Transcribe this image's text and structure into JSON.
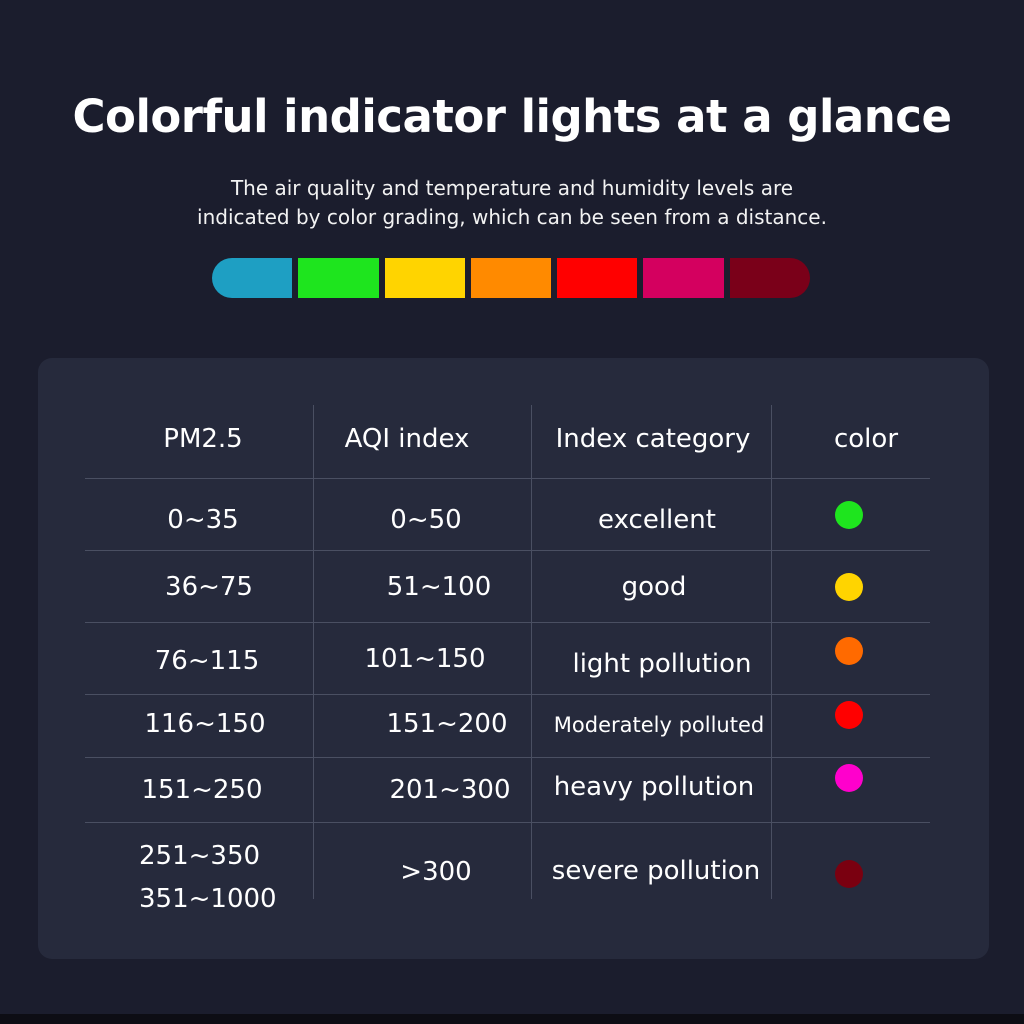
{
  "header": {
    "title": "Colorful indicator lights at a glance",
    "subtitle_line1": "The air quality and temperature and humidity levels are",
    "subtitle_line2": "indicated by color grading, which can be seen from a distance."
  },
  "color_bar": [
    "#1e9fc3",
    "#1ee51e",
    "#ffd400",
    "#ff8a00",
    "#ff0000",
    "#d4005f",
    "#7a0019"
  ],
  "table": {
    "headers": [
      "PM2.5",
      "AQI index",
      "Index category",
      "color"
    ],
    "rows": [
      {
        "pm25": "0~35",
        "aqi": "0~50",
        "category": "excellent",
        "color": "#1ee51e"
      },
      {
        "pm25": "36~75",
        "aqi": "51~100",
        "category": "good",
        "color": "#ffd400"
      },
      {
        "pm25": "76~115",
        "aqi": "101~150",
        "category": "light pollution",
        "color": "#ff6a00"
      },
      {
        "pm25": "116~150",
        "aqi": "151~200",
        "category": "Moderately polluted",
        "color": "#ff0000"
      },
      {
        "pm25": "151~250",
        "aqi": "201~300",
        "category": "heavy pollution",
        "color": "#ff00cc"
      },
      {
        "pm25": "251~350",
        "pm25_line2": "351~1000",
        "aqi": ">300",
        "category": "severe pollution",
        "color": "#7a0010"
      }
    ]
  }
}
